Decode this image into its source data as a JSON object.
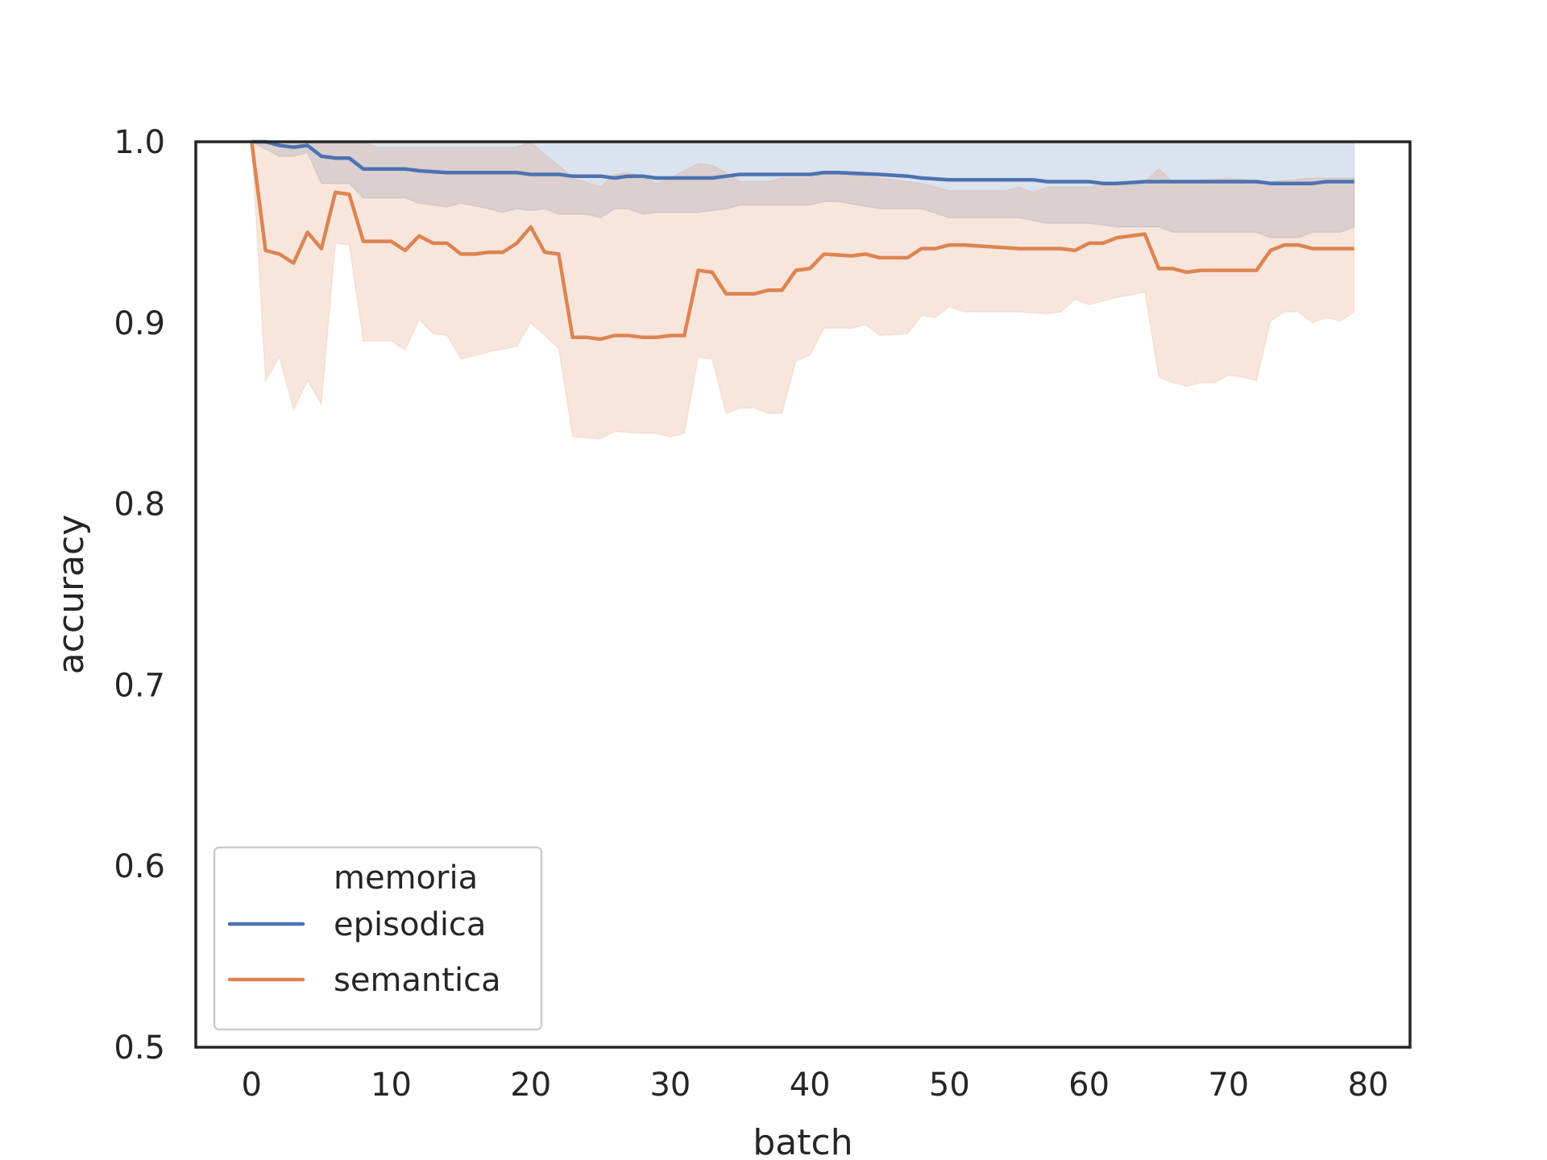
{
  "chart_data": {
    "type": "line",
    "xlabel": "batch",
    "ylabel": "accuracy",
    "xlim": [
      -4,
      83
    ],
    "ylim": [
      0.5,
      1.0
    ],
    "xticks": [
      0,
      10,
      20,
      30,
      40,
      50,
      60,
      70,
      80
    ],
    "yticks": [
      0.5,
      0.6,
      0.7,
      0.8,
      0.9,
      1.0
    ],
    "x_tick_labels": [
      "0",
      "10",
      "20",
      "30",
      "40",
      "50",
      "60",
      "70",
      "80"
    ],
    "y_tick_labels": [
      "0.5",
      "0.6",
      "0.7",
      "0.8",
      "0.9",
      "1.0"
    ],
    "grid": false,
    "legend": {
      "title": "memoria",
      "placement": "lower-left",
      "entries": [
        "episodica",
        "semantica"
      ]
    },
    "series": [
      {
        "name": "episodica",
        "color": "#4c72b0",
        "keypoints": [
          [
            0,
            1.0
          ],
          [
            1,
            1.0
          ],
          [
            2,
            0.998
          ],
          [
            3,
            0.997
          ],
          [
            4,
            0.998
          ],
          [
            5,
            0.992
          ],
          [
            6,
            0.991
          ],
          [
            7,
            0.991
          ],
          [
            8,
            0.985
          ],
          [
            10,
            0.985
          ],
          [
            11,
            0.985
          ],
          [
            12,
            0.984
          ],
          [
            14,
            0.983
          ],
          [
            19,
            0.983
          ],
          [
            20,
            0.982
          ],
          [
            22,
            0.982
          ],
          [
            23,
            0.981
          ],
          [
            25,
            0.981
          ],
          [
            26,
            0.98
          ],
          [
            27,
            0.981
          ],
          [
            28,
            0.981
          ],
          [
            29,
            0.98
          ],
          [
            31,
            0.98
          ],
          [
            33,
            0.98
          ],
          [
            34,
            0.981
          ],
          [
            35,
            0.982
          ],
          [
            40,
            0.982
          ],
          [
            41,
            0.983
          ],
          [
            42,
            0.983
          ],
          [
            45,
            0.982
          ],
          [
            47,
            0.981
          ],
          [
            48,
            0.98
          ],
          [
            50,
            0.979
          ],
          [
            56,
            0.979
          ],
          [
            57,
            0.978
          ],
          [
            58,
            0.978
          ],
          [
            60,
            0.978
          ],
          [
            61,
            0.977
          ],
          [
            62,
            0.977
          ],
          [
            64,
            0.978
          ],
          [
            72,
            0.978
          ],
          [
            73,
            0.977
          ],
          [
            76,
            0.977
          ],
          [
            77,
            0.978
          ],
          [
            79,
            0.978
          ]
        ],
        "ci_lower": [
          [
            0,
            1.0
          ],
          [
            2,
            0.992
          ],
          [
            3,
            0.992
          ],
          [
            4,
            0.994
          ],
          [
            5,
            0.977
          ],
          [
            7,
            0.977
          ],
          [
            8,
            0.969
          ],
          [
            11,
            0.969
          ],
          [
            12,
            0.966
          ],
          [
            14,
            0.964
          ],
          [
            15,
            0.966
          ],
          [
            17,
            0.963
          ],
          [
            18,
            0.961
          ],
          [
            19,
            0.963
          ],
          [
            20,
            0.962
          ],
          [
            21,
            0.963
          ],
          [
            22,
            0.96
          ],
          [
            24,
            0.96
          ],
          [
            25,
            0.958
          ],
          [
            26,
            0.963
          ],
          [
            27,
            0.963
          ],
          [
            28,
            0.96
          ],
          [
            29,
            0.961
          ],
          [
            32,
            0.961
          ],
          [
            33,
            0.962
          ],
          [
            34,
            0.963
          ],
          [
            35,
            0.965
          ],
          [
            40,
            0.965
          ],
          [
            41,
            0.967
          ],
          [
            42,
            0.967
          ],
          [
            45,
            0.963
          ],
          [
            48,
            0.963
          ],
          [
            50,
            0.958
          ],
          [
            55,
            0.958
          ],
          [
            57,
            0.955
          ],
          [
            59,
            0.955
          ],
          [
            60,
            0.955
          ],
          [
            62,
            0.953
          ],
          [
            65,
            0.953
          ],
          [
            66,
            0.95
          ],
          [
            70,
            0.95
          ],
          [
            72,
            0.95
          ],
          [
            73,
            0.947
          ],
          [
            75,
            0.947
          ],
          [
            76,
            0.95
          ],
          [
            78,
            0.95
          ],
          [
            79,
            0.953
          ]
        ],
        "ci_upper": [
          [
            0,
            1.0
          ],
          [
            79,
            1.0
          ]
        ]
      },
      {
        "name": "semantica",
        "color": "#dd8452",
        "keypoints": [
          [
            0,
            1.0
          ],
          [
            1,
            0.94
          ],
          [
            2,
            0.938
          ],
          [
            3,
            0.933
          ],
          [
            4,
            0.95
          ],
          [
            5,
            0.941
          ],
          [
            6,
            0.972
          ],
          [
            7,
            0.971
          ],
          [
            8,
            0.945
          ],
          [
            10,
            0.945
          ],
          [
            11,
            0.94
          ],
          [
            12,
            0.948
          ],
          [
            13,
            0.944
          ],
          [
            14,
            0.944
          ],
          [
            15,
            0.938
          ],
          [
            16,
            0.938
          ],
          [
            17,
            0.939
          ],
          [
            18,
            0.939
          ],
          [
            19,
            0.944
          ],
          [
            20,
            0.953
          ],
          [
            21,
            0.939
          ],
          [
            22,
            0.938
          ],
          [
            23,
            0.892
          ],
          [
            24,
            0.892
          ],
          [
            25,
            0.891
          ],
          [
            26,
            0.893
          ],
          [
            27,
            0.893
          ],
          [
            28,
            0.892
          ],
          [
            29,
            0.892
          ],
          [
            30,
            0.893
          ],
          [
            31,
            0.893
          ],
          [
            32,
            0.929
          ],
          [
            33,
            0.928
          ],
          [
            34,
            0.916
          ],
          [
            36,
            0.916
          ],
          [
            37,
            0.918
          ],
          [
            38,
            0.918
          ],
          [
            39,
            0.929
          ],
          [
            40,
            0.93
          ],
          [
            41,
            0.938
          ],
          [
            43,
            0.937
          ],
          [
            44,
            0.938
          ],
          [
            45,
            0.936
          ],
          [
            47,
            0.936
          ],
          [
            48,
            0.941
          ],
          [
            49,
            0.941
          ],
          [
            50,
            0.943
          ],
          [
            51,
            0.943
          ],
          [
            55,
            0.941
          ],
          [
            57,
            0.941
          ],
          [
            58,
            0.941
          ],
          [
            59,
            0.94
          ],
          [
            60,
            0.944
          ],
          [
            61,
            0.944
          ],
          [
            62,
            0.947
          ],
          [
            64,
            0.949
          ],
          [
            65,
            0.93
          ],
          [
            66,
            0.93
          ],
          [
            67,
            0.928
          ],
          [
            68,
            0.929
          ],
          [
            72,
            0.929
          ],
          [
            73,
            0.94
          ],
          [
            74,
            0.943
          ],
          [
            75,
            0.943
          ],
          [
            76,
            0.941
          ],
          [
            79,
            0.941
          ]
        ],
        "ci_lower": [
          [
            0,
            1.0
          ],
          [
            1,
            0.868
          ],
          [
            2,
            0.881
          ],
          [
            3,
            0.852
          ],
          [
            4,
            0.868
          ],
          [
            5,
            0.855
          ],
          [
            6,
            0.944
          ],
          [
            7,
            0.943
          ],
          [
            8,
            0.89
          ],
          [
            10,
            0.89
          ],
          [
            11,
            0.885
          ],
          [
            12,
            0.902
          ],
          [
            13,
            0.894
          ],
          [
            14,
            0.893
          ],
          [
            15,
            0.88
          ],
          [
            17,
            0.884
          ],
          [
            19,
            0.887
          ],
          [
            20,
            0.9
          ],
          [
            21,
            0.893
          ],
          [
            22,
            0.886
          ],
          [
            23,
            0.837
          ],
          [
            25,
            0.836
          ],
          [
            26,
            0.84
          ],
          [
            28,
            0.839
          ],
          [
            29,
            0.839
          ],
          [
            30,
            0.837
          ],
          [
            31,
            0.839
          ],
          [
            32,
            0.881
          ],
          [
            33,
            0.88
          ],
          [
            34,
            0.85
          ],
          [
            35,
            0.853
          ],
          [
            36,
            0.853
          ],
          [
            37,
            0.85
          ],
          [
            38,
            0.85
          ],
          [
            39,
            0.879
          ],
          [
            40,
            0.882
          ],
          [
            41,
            0.897
          ],
          [
            43,
            0.897
          ],
          [
            44,
            0.899
          ],
          [
            45,
            0.893
          ],
          [
            47,
            0.894
          ],
          [
            48,
            0.904
          ],
          [
            49,
            0.903
          ],
          [
            50,
            0.909
          ],
          [
            51,
            0.906
          ],
          [
            55,
            0.906
          ],
          [
            57,
            0.905
          ],
          [
            58,
            0.906
          ],
          [
            59,
            0.913
          ],
          [
            60,
            0.91
          ],
          [
            62,
            0.914
          ],
          [
            64,
            0.917
          ],
          [
            65,
            0.87
          ],
          [
            66,
            0.867
          ],
          [
            67,
            0.865
          ],
          [
            68,
            0.867
          ],
          [
            69,
            0.867
          ],
          [
            70,
            0.871
          ],
          [
            71,
            0.87
          ],
          [
            72,
            0.868
          ],
          [
            73,
            0.901
          ],
          [
            74,
            0.906
          ],
          [
            75,
            0.906
          ],
          [
            76,
            0.9
          ],
          [
            77,
            0.903
          ],
          [
            78,
            0.901
          ],
          [
            79,
            0.906
          ]
        ],
        "ci_upper": [
          [
            0,
            1.0
          ],
          [
            1,
            1.0
          ],
          [
            8,
            1.0
          ],
          [
            9,
            0.997
          ],
          [
            19,
            0.997
          ],
          [
            20,
            1.0
          ],
          [
            21,
            0.993
          ],
          [
            22,
            0.987
          ],
          [
            23,
            0.98
          ],
          [
            25,
            0.975
          ],
          [
            26,
            0.982
          ],
          [
            27,
            0.983
          ],
          [
            28,
            0.981
          ],
          [
            29,
            0.977
          ],
          [
            30,
            0.98
          ],
          [
            31,
            0.984
          ],
          [
            32,
            0.988
          ],
          [
            33,
            0.987
          ],
          [
            34,
            0.983
          ],
          [
            35,
            0.978
          ],
          [
            37,
            0.978
          ],
          [
            38,
            0.98
          ],
          [
            40,
            0.98
          ],
          [
            41,
            0.984
          ],
          [
            45,
            0.98
          ],
          [
            48,
            0.977
          ],
          [
            50,
            0.973
          ],
          [
            54,
            0.973
          ],
          [
            55,
            0.975
          ],
          [
            56,
            0.972
          ],
          [
            57,
            0.975
          ],
          [
            60,
            0.975
          ],
          [
            62,
            0.978
          ],
          [
            64,
            0.978
          ],
          [
            65,
            0.985
          ],
          [
            66,
            0.978
          ],
          [
            70,
            0.98
          ],
          [
            73,
            0.978
          ],
          [
            76,
            0.98
          ],
          [
            79,
            0.98
          ]
        ]
      }
    ]
  }
}
